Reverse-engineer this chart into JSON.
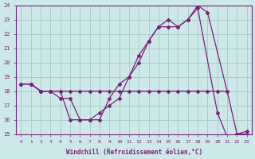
{
  "xlabel": "Windchill (Refroidissement éolien,°C)",
  "background_color": "#cce8e8",
  "grid_color": "#aacccc",
  "line_color": "#7b1f7b",
  "xlim": [
    -0.5,
    23.5
  ],
  "ylim": [
    15,
    24
  ],
  "yticks": [
    15,
    16,
    17,
    18,
    19,
    20,
    21,
    22,
    23,
    24
  ],
  "xticks": [
    0,
    1,
    2,
    3,
    4,
    5,
    6,
    7,
    8,
    9,
    10,
    11,
    12,
    13,
    14,
    15,
    16,
    17,
    18,
    19,
    20,
    21,
    22,
    23
  ],
  "series": [
    {
      "x": [
        0,
        1,
        2,
        3,
        4,
        5,
        6,
        7,
        8,
        9,
        10,
        11,
        12,
        13,
        14,
        15,
        16,
        17,
        18,
        19,
        20,
        21
      ],
      "y": [
        18.5,
        18.5,
        18.0,
        18.0,
        18.0,
        18.0,
        18.0,
        18.0,
        18.0,
        18.0,
        18.0,
        18.0,
        18.0,
        18.0,
        18.0,
        18.0,
        18.0,
        18.0,
        18.0,
        18.0,
        18.0,
        18.0
      ]
    },
    {
      "x": [
        0,
        1,
        2,
        3,
        4,
        5,
        6,
        7,
        8,
        9,
        10,
        11,
        12,
        13,
        14,
        15,
        16,
        17,
        18,
        20,
        21,
        22,
        23
      ],
      "y": [
        18.5,
        18.5,
        18.0,
        18.0,
        18.0,
        16.0,
        16.0,
        16.0,
        16.5,
        17.0,
        17.5,
        19.0,
        20.5,
        21.5,
        22.5,
        23.0,
        22.5,
        23.0,
        23.8,
        16.5,
        14.8,
        15.0,
        15.0
      ]
    },
    {
      "x": [
        0,
        1,
        2,
        3,
        4,
        5,
        6,
        7,
        8,
        9,
        10,
        11,
        12,
        13,
        14,
        15,
        16,
        17,
        18,
        19,
        21,
        22,
        23
      ],
      "y": [
        18.5,
        18.5,
        18.0,
        18.0,
        17.5,
        17.5,
        16.0,
        16.0,
        16.0,
        17.5,
        18.5,
        19.0,
        20.0,
        21.5,
        22.5,
        22.5,
        22.5,
        23.0,
        24.0,
        23.5,
        18.0,
        15.0,
        15.2
      ]
    }
  ]
}
